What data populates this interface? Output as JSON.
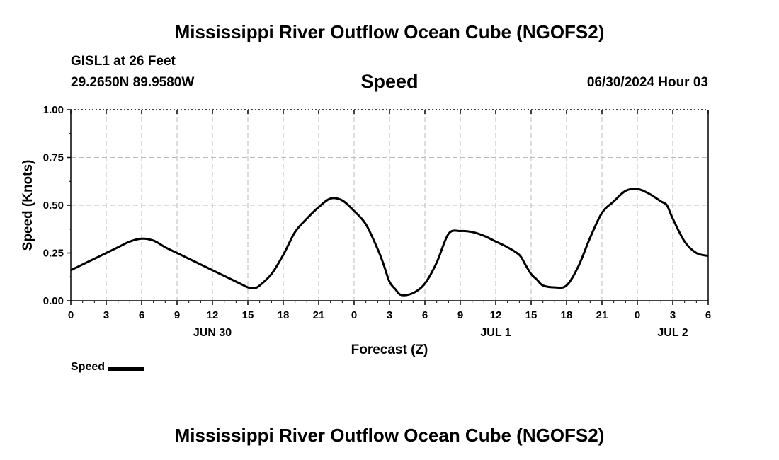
{
  "header": {
    "title": "Mississippi River Outflow Ocean Cube (NGOFS2)",
    "station_line1": "GISL1 at 26 Feet",
    "station_line2": "29.2650N  89.9580W",
    "variable": "Speed",
    "datetime": "06/30/2024 Hour 03"
  },
  "footer": {
    "title": "Mississippi River Outflow Ocean Cube (NGOFS2)"
  },
  "chart_data": {
    "type": "line",
    "title": "Speed",
    "xlabel": "Forecast (Z)",
    "ylabel": "Speed (Knots)",
    "xlim": [
      0,
      54
    ],
    "ylim": [
      0,
      1
    ],
    "grid": true,
    "x_ticks": [
      0,
      3,
      6,
      9,
      12,
      15,
      18,
      21,
      24,
      27,
      30,
      33,
      36,
      39,
      42,
      45,
      48,
      51,
      54
    ],
    "x_tick_labels": [
      "0",
      "3",
      "6",
      "9",
      "12",
      "15",
      "18",
      "21",
      "0",
      "3",
      "6",
      "9",
      "12",
      "15",
      "18",
      "21",
      "0",
      "3",
      "6"
    ],
    "y_ticks": [
      0,
      0.25,
      0.5,
      0.75,
      1.0
    ],
    "y_tick_labels": [
      "0.00",
      "0.25",
      "0.50",
      "0.75",
      "1.00"
    ],
    "date_labels": [
      {
        "x": 12,
        "label": "JUN 30"
      },
      {
        "x": 36,
        "label": "JUL 1"
      },
      {
        "x": 51,
        "label": "JUL 2"
      }
    ],
    "legend": {
      "label": "Speed",
      "placement": "bottom-left"
    },
    "series": [
      {
        "name": "Speed",
        "color": "#000000",
        "x": [
          0,
          1,
          2,
          3,
          4,
          5,
          6,
          7,
          8,
          9,
          10,
          11,
          12,
          13,
          14,
          14.5,
          15,
          15.5,
          16,
          17,
          18,
          19,
          20,
          21,
          22,
          23,
          24,
          25,
          26,
          26.5,
          27,
          27.5,
          28,
          29,
          30,
          31,
          32,
          33,
          34,
          35,
          36,
          37,
          38,
          38.5,
          39,
          39.5,
          40,
          41,
          42,
          43,
          44,
          45,
          46,
          47,
          48,
          49,
          50,
          50.5,
          51,
          52,
          53,
          54
        ],
        "y": [
          0.16,
          0.19,
          0.22,
          0.25,
          0.28,
          0.31,
          0.325,
          0.315,
          0.28,
          0.25,
          0.22,
          0.19,
          0.16,
          0.13,
          0.1,
          0.085,
          0.07,
          0.065,
          0.08,
          0.14,
          0.24,
          0.36,
          0.43,
          0.49,
          0.535,
          0.525,
          0.47,
          0.4,
          0.27,
          0.19,
          0.1,
          0.06,
          0.03,
          0.04,
          0.09,
          0.2,
          0.35,
          0.365,
          0.36,
          0.34,
          0.31,
          0.28,
          0.24,
          0.19,
          0.14,
          0.11,
          0.08,
          0.07,
          0.08,
          0.18,
          0.33,
          0.46,
          0.52,
          0.575,
          0.585,
          0.56,
          0.52,
          0.5,
          0.43,
          0.31,
          0.25,
          0.235
        ]
      }
    ]
  }
}
